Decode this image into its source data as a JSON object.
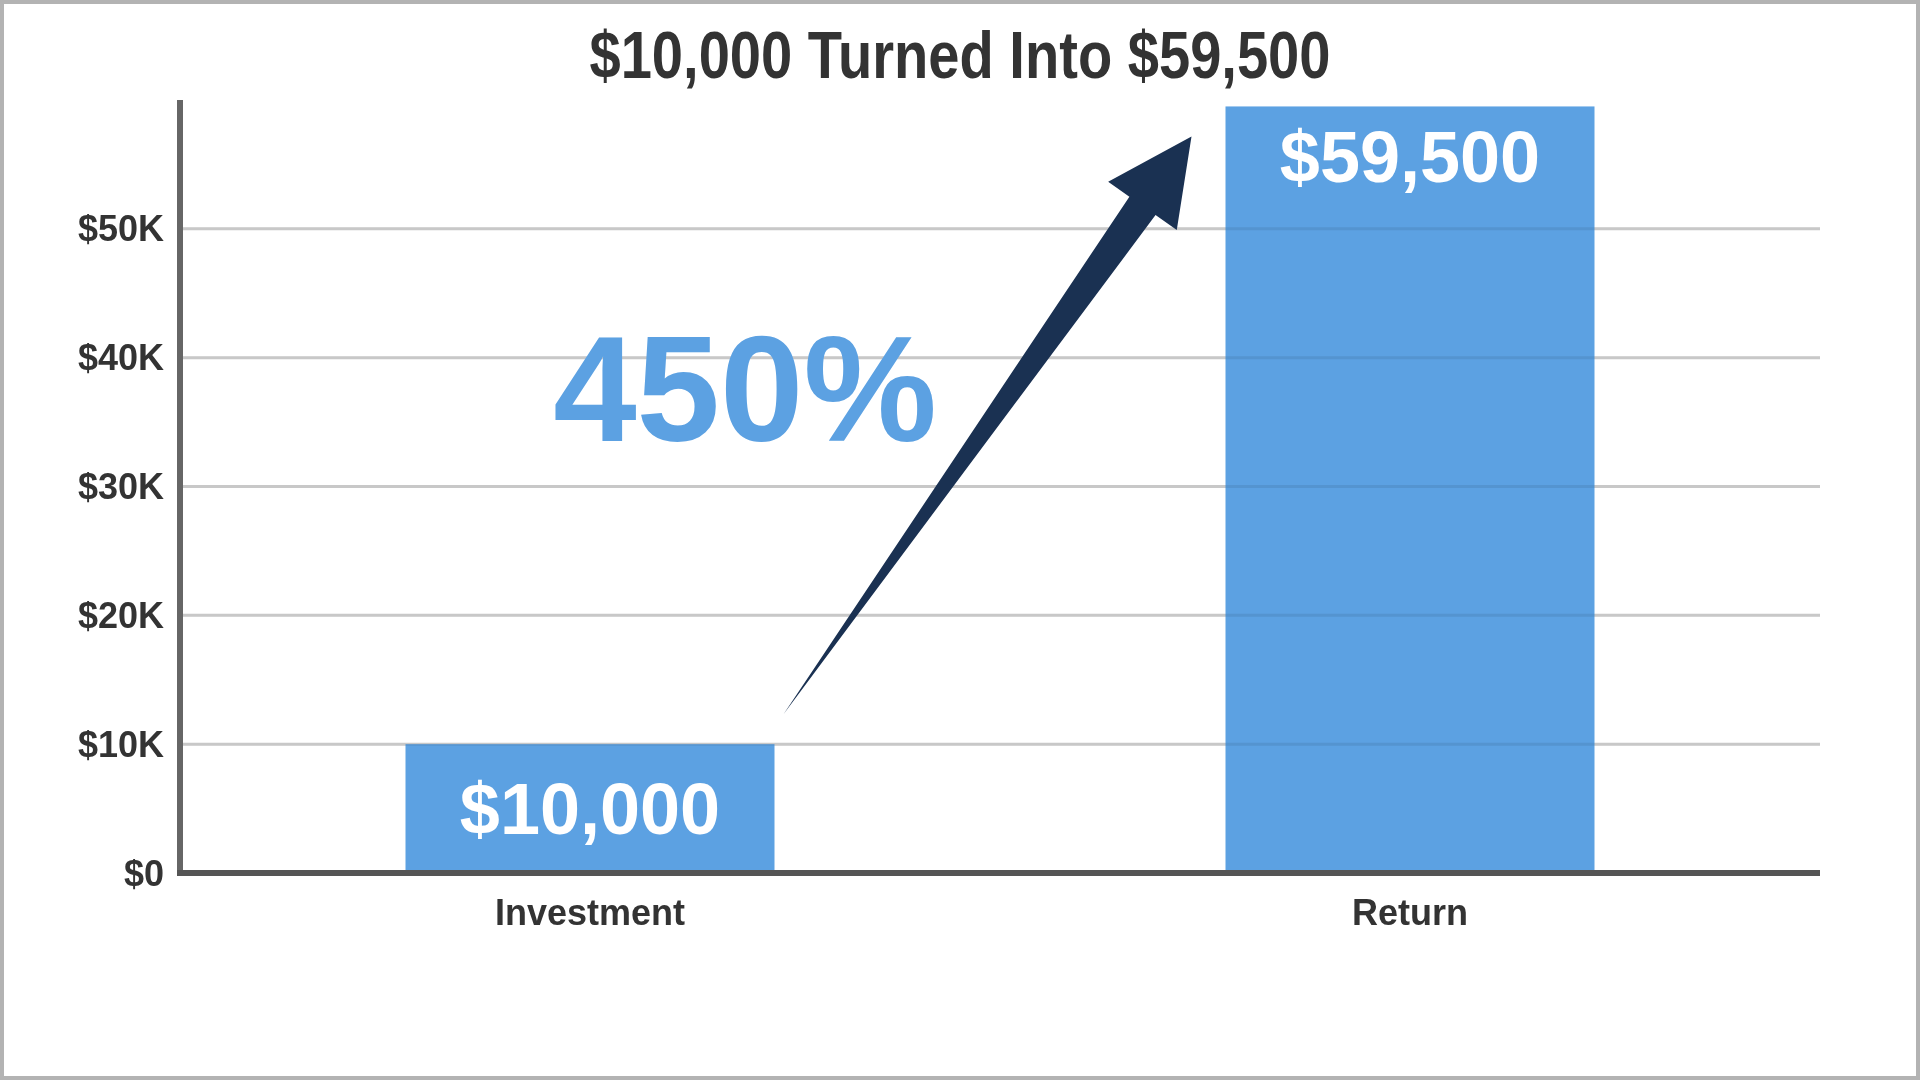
{
  "chart_data": {
    "type": "bar",
    "title": "$10,000 Turned Into $59,500",
    "categories": [
      "Investment",
      "Return"
    ],
    "values": [
      10000,
      59500
    ],
    "value_labels": [
      "$10,000",
      "$59,500"
    ],
    "color": "#5ca1e2",
    "ylim": [
      0,
      60000
    ],
    "yticks": [
      {
        "value": 0,
        "label": "$0"
      },
      {
        "value": 10000,
        "label": "$10K"
      },
      {
        "value": 20000,
        "label": "$20K"
      },
      {
        "value": 30000,
        "label": "$30K"
      },
      {
        "value": 40000,
        "label": "$40K"
      },
      {
        "value": 50000,
        "label": "$50K"
      }
    ],
    "grid": "y",
    "annotations": [
      "450%"
    ]
  }
}
